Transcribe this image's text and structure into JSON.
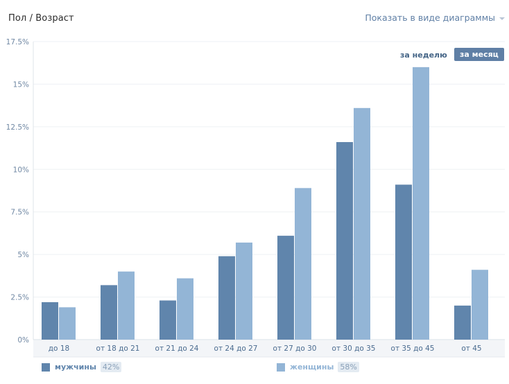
{
  "header": {
    "title": "Пол / Возраст",
    "view_toggle_label": "Показать в виде диаграммы"
  },
  "period_switch": {
    "week_label": "за неделю",
    "month_label": "за месяц",
    "active": "month"
  },
  "legend": {
    "items": [
      {
        "name": "мужчины",
        "percent": "42%",
        "color": "#6085ac"
      },
      {
        "name": "женщины",
        "percent": "58%",
        "color": "#93b5d6"
      }
    ]
  },
  "chart_data": {
    "type": "bar",
    "title": "Пол / Возраст",
    "xlabel": "",
    "ylabel": "",
    "categories": [
      "до 18",
      "от 18 до 21",
      "от 21 до 24",
      "от 24 до 27",
      "от 27 до 30",
      "от 30 до 35",
      "от 35 до 45",
      "от 45"
    ],
    "series": [
      {
        "name": "мужчины",
        "values": [
          2.2,
          3.2,
          2.3,
          4.9,
          6.1,
          11.6,
          9.1,
          2.0
        ],
        "color": "#6085ac"
      },
      {
        "name": "женщины",
        "values": [
          1.9,
          4.0,
          3.6,
          5.7,
          8.9,
          13.6,
          16.0,
          4.1
        ],
        "color": "#93b5d6"
      }
    ],
    "ylim": [
      0,
      17.5
    ],
    "yticks": [
      "0%",
      "2.5%",
      "5%",
      "7.5%",
      "10%",
      "12.5%",
      "15%",
      "17.5%"
    ],
    "ytick_values": [
      0,
      2.5,
      5,
      7.5,
      10,
      12.5,
      15,
      17.5
    ],
    "grid": true,
    "legend_position": "bottom"
  }
}
